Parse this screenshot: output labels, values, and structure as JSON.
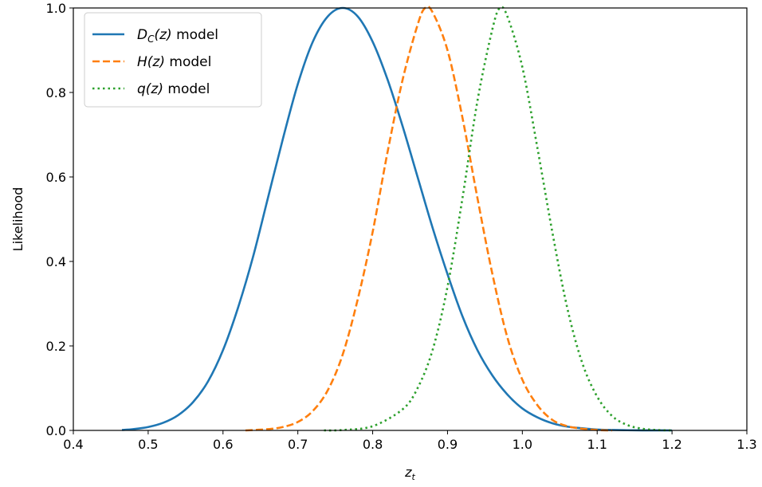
{
  "chart_data": {
    "type": "line",
    "xlabel": "z",
    "xlabel_sub": "t",
    "ylabel": "Likelihood",
    "xlim": [
      0.4,
      1.3
    ],
    "ylim": [
      0.0,
      1.0
    ],
    "xticks": [
      "0.4",
      "0.5",
      "0.6",
      "0.7",
      "0.8",
      "0.9",
      "1.0",
      "1.1",
      "1.2",
      "1.3"
    ],
    "yticks": [
      "0.0",
      "0.2",
      "0.4",
      "0.6",
      "0.8",
      "1.0"
    ],
    "grid": false,
    "legend_position": "top-left",
    "series": [
      {
        "name": "D_C(z) model",
        "legend_main": "D",
        "legend_sub": "C",
        "legend_arg": "(z)",
        "legend_rest": " model",
        "color": "#1f77b4",
        "style": "solid",
        "x": [
          0.465,
          0.48,
          0.5,
          0.52,
          0.54,
          0.56,
          0.58,
          0.6,
          0.62,
          0.64,
          0.66,
          0.68,
          0.7,
          0.72,
          0.74,
          0.76,
          0.78,
          0.8,
          0.82,
          0.84,
          0.86,
          0.88,
          0.9,
          0.92,
          0.94,
          0.96,
          0.98,
          1.0,
          1.02,
          1.04,
          1.06,
          1.08,
          1.1,
          1.12,
          1.14,
          1.16,
          1.18,
          1.2
        ],
        "y": [
          0.001,
          0.003,
          0.008,
          0.018,
          0.036,
          0.067,
          0.116,
          0.19,
          0.29,
          0.41,
          0.55,
          0.69,
          0.82,
          0.92,
          0.98,
          1.0,
          0.98,
          0.92,
          0.83,
          0.72,
          0.6,
          0.48,
          0.37,
          0.27,
          0.19,
          0.13,
          0.085,
          0.052,
          0.031,
          0.017,
          0.009,
          0.005,
          0.002,
          0.001,
          0.0005,
          0.0002,
          0.0001,
          0.0
        ]
      },
      {
        "name": "H(z) model",
        "legend_main": "H",
        "legend_sub": "",
        "legend_arg": "(z)",
        "legend_rest": " model",
        "color": "#ff7f0e",
        "style": "dashed",
        "x": [
          0.63,
          0.66,
          0.68,
          0.7,
          0.72,
          0.74,
          0.76,
          0.78,
          0.8,
          0.82,
          0.84,
          0.86,
          0.87,
          0.88,
          0.9,
          0.92,
          0.94,
          0.96,
          0.98,
          1.0,
          1.02,
          1.04,
          1.06,
          1.08,
          1.1,
          1.12
        ],
        "y": [
          0.0,
          0.003,
          0.008,
          0.02,
          0.046,
          0.095,
          0.18,
          0.31,
          0.47,
          0.66,
          0.83,
          0.96,
          1.0,
          0.99,
          0.9,
          0.74,
          0.55,
          0.37,
          0.22,
          0.12,
          0.06,
          0.025,
          0.01,
          0.004,
          0.001,
          0.0
        ]
      },
      {
        "name": "q(z) model",
        "legend_main": "q",
        "legend_sub": "",
        "legend_arg": "(z)",
        "legend_rest": " model",
        "color": "#2ca02c",
        "style": "dotted",
        "x": [
          0.735,
          0.76,
          0.8,
          0.84,
          0.86,
          0.88,
          0.9,
          0.92,
          0.94,
          0.96,
          0.97,
          0.98,
          1.0,
          1.02,
          1.04,
          1.06,
          1.08,
          1.1,
          1.12,
          1.14,
          1.16,
          1.18,
          1.2
        ],
        "y": [
          0.0,
          0.001,
          0.01,
          0.05,
          0.1,
          0.19,
          0.34,
          0.55,
          0.78,
          0.95,
          1.0,
          0.98,
          0.86,
          0.67,
          0.47,
          0.29,
          0.16,
          0.08,
          0.034,
          0.013,
          0.004,
          0.001,
          0.0
        ]
      }
    ]
  }
}
